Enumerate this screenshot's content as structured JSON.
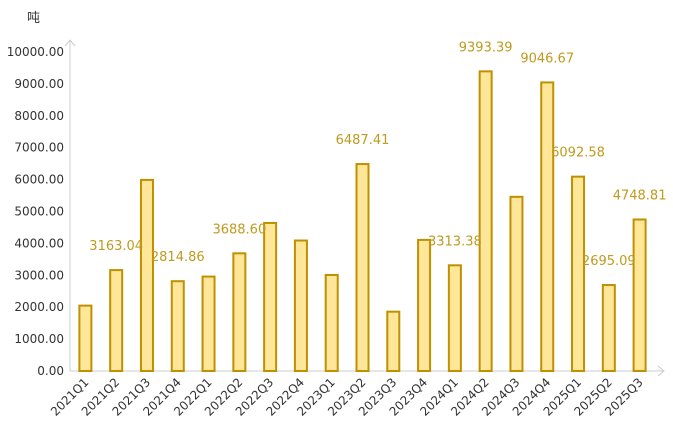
{
  "chart_data": {
    "type": "bar",
    "title": "",
    "xlabel": "",
    "ylabel": "吨",
    "ylim": [
      0,
      10000
    ],
    "yticks": [
      "0.00",
      "1000.00",
      "2000.00",
      "3000.00",
      "4000.00",
      "5000.00",
      "6000.00",
      "7000.00",
      "8000.00",
      "9000.00",
      "10000.00"
    ],
    "grid": false,
    "legend": "none",
    "categories": [
      "2021Q1",
      "2021Q2",
      "2021Q3",
      "2021Q4",
      "2022Q1",
      "2022Q2",
      "2022Q3",
      "2022Q4",
      "2023Q1",
      "2023Q2",
      "2023Q3",
      "2023Q4",
      "2024Q1",
      "2024Q2",
      "2024Q3",
      "2024Q4",
      "2025Q1",
      "2025Q2",
      "2025Q3"
    ],
    "values": [
      2050,
      3163.04,
      5990,
      2814.86,
      2960,
      3688.6,
      4640,
      4090,
      3010,
      6487.41,
      1860,
      4110,
      3313.38,
      9393.39,
      5460,
      9046.67,
      6092.58,
      2695.09,
      4748.81
    ],
    "data_labels": [
      "",
      "3163.04",
      "",
      "2814.86",
      "",
      "3688.60",
      "",
      "",
      "",
      "6487.41",
      "",
      "",
      "3313.38",
      "9393.39",
      "",
      "9046.67",
      "6092.58",
      "2695.09",
      "4748.81"
    ],
    "colors": {
      "bar_fill": "#FFE699",
      "bar_stroke": "#BF9000",
      "label": "#C09A1E",
      "axis": "#CCCCCC"
    }
  }
}
